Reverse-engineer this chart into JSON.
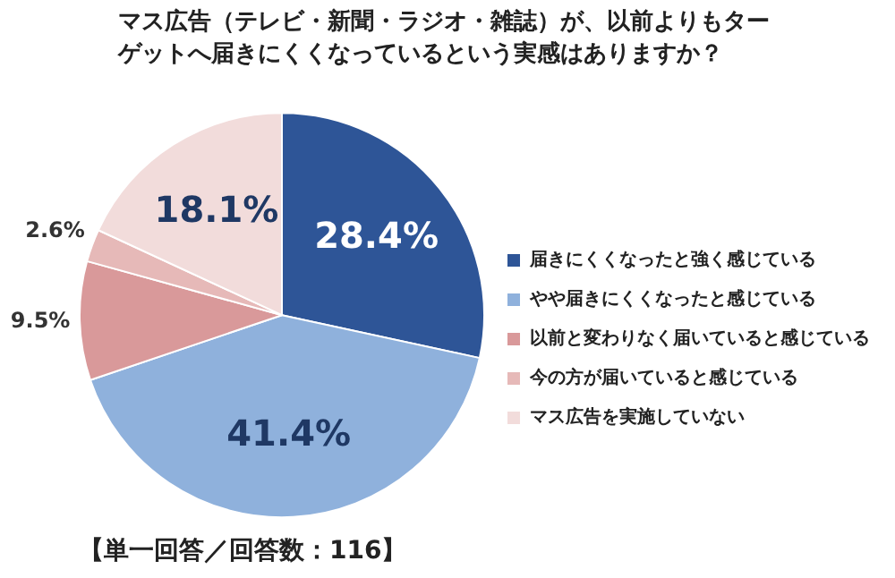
{
  "chart_data": {
    "type": "pie",
    "title": "マス広告（テレビ・新聞・ラジオ・雑誌）が、以前よりもターゲットへ届きにくくなっているという実感はありますか？",
    "categories": [
      "届きにくくなったと強く感じている",
      "やや届きにくくなったと感じている",
      "以前と変わりなく届いていると感じている",
      "今の方が届いていると感じている",
      "マス広告を実施していない"
    ],
    "values": [
      28.4,
      41.4,
      9.5,
      2.6,
      18.1
    ],
    "colors": [
      "#2e5597",
      "#8fb1dc",
      "#d9999a",
      "#e6b9b8",
      "#f2dcdb"
    ],
    "value_labels": [
      "28.4%",
      "41.4%",
      "9.5%",
      "2.6%",
      "18.1%"
    ],
    "legend": "right",
    "annotations": [
      "【単一回答／回答数：116】"
    ]
  }
}
